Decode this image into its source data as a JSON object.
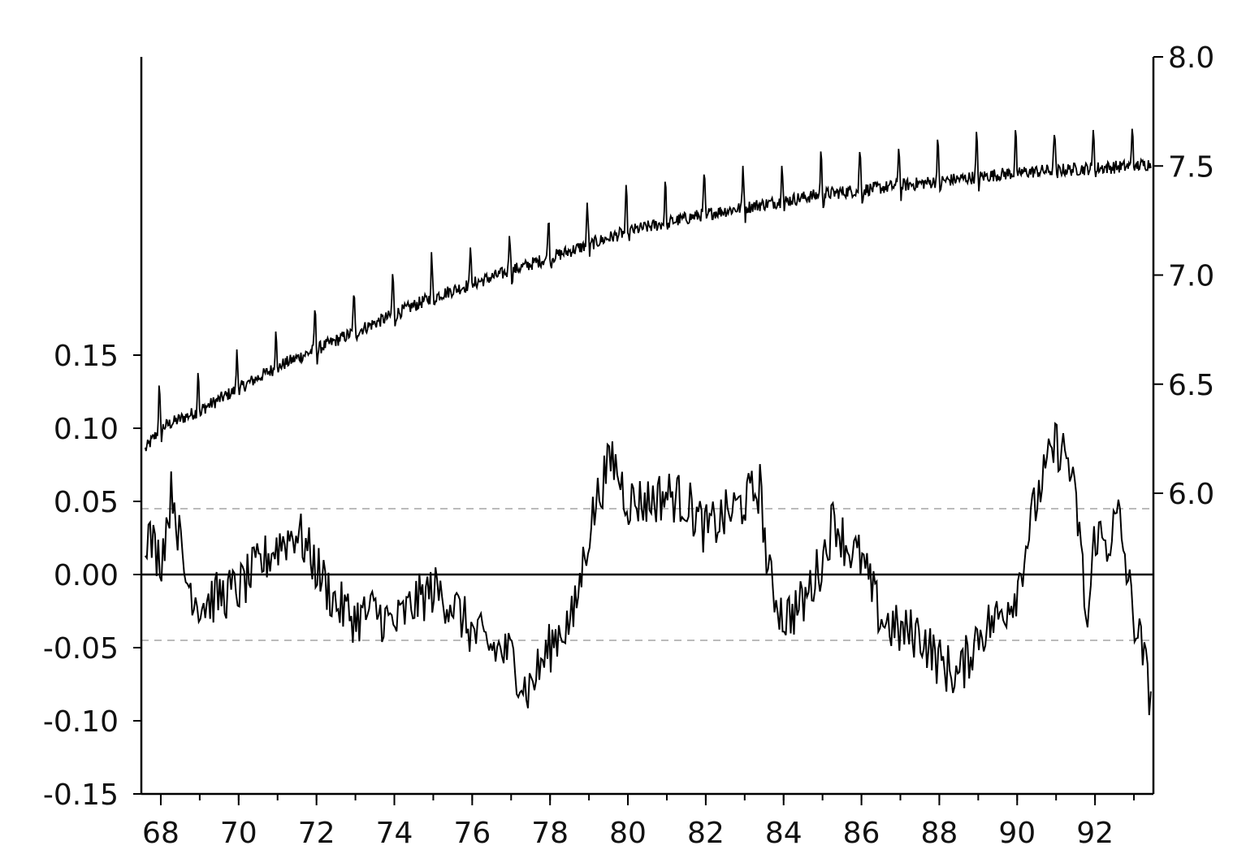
{
  "chart_data": {
    "type": "line",
    "title": "",
    "xlabel": "",
    "ylabel": "",
    "x_range": [
      1967.5,
      1993.5
    ],
    "x_ticks": [
      "68",
      "70",
      "72",
      "74",
      "76",
      "78",
      "80",
      "82",
      "84",
      "86",
      "88",
      "90",
      "92"
    ],
    "x_tick_years": [
      1968,
      1970,
      1972,
      1974,
      1976,
      1978,
      1980,
      1982,
      1984,
      1986,
      1988,
      1990,
      1992
    ],
    "left_axis": {
      "ylim": [
        -0.15,
        0.2
      ],
      "ticks": [
        "-0.15",
        "-0.10",
        "-0.05",
        "0.00",
        "0.05",
        "0.10",
        "0.15"
      ],
      "tick_values": [
        -0.15,
        -0.1,
        -0.05,
        0.0,
        0.05,
        0.1,
        0.15
      ]
    },
    "right_axis": {
      "ylim": [
        5.6,
        8.0
      ],
      "ticks": [
        "6.0",
        "6.5",
        "7.0",
        "7.5",
        "8.0"
      ],
      "tick_values": [
        6.0,
        6.5,
        7.0,
        7.5,
        8.0
      ]
    },
    "reference_lines": [
      {
        "axis": "left",
        "value": 0.0,
        "style": "solid",
        "color": "#000000"
      },
      {
        "axis": "left",
        "value": 0.045,
        "style": "dashed",
        "color": "#bbbbbb"
      },
      {
        "axis": "left",
        "value": -0.045,
        "style": "dashed",
        "color": "#bbbbbb"
      }
    ],
    "series": [
      {
        "axis": "right",
        "color": "#000000",
        "description_points": [
          [
            1967.6,
            6.2
          ],
          [
            1968.0,
            6.3
          ],
          [
            1969.0,
            6.38
          ],
          [
            1970.0,
            6.48
          ],
          [
            1971.0,
            6.58
          ],
          [
            1972.0,
            6.66
          ],
          [
            1973.0,
            6.74
          ],
          [
            1974.0,
            6.82
          ],
          [
            1975.0,
            6.9
          ],
          [
            1976.0,
            6.96
          ],
          [
            1977.0,
            7.02
          ],
          [
            1978.0,
            7.08
          ],
          [
            1979.0,
            7.14
          ],
          [
            1980.0,
            7.2
          ],
          [
            1981.0,
            7.24
          ],
          [
            1982.0,
            7.28
          ],
          [
            1983.0,
            7.31
          ],
          [
            1984.0,
            7.34
          ],
          [
            1985.0,
            7.37
          ],
          [
            1986.0,
            7.39
          ],
          [
            1987.0,
            7.41
          ],
          [
            1988.0,
            7.43
          ],
          [
            1989.0,
            7.45
          ],
          [
            1990.0,
            7.47
          ],
          [
            1991.0,
            7.48
          ],
          [
            1992.0,
            7.49
          ],
          [
            1993.0,
            7.5
          ],
          [
            1993.4,
            7.51
          ]
        ],
        "seasonal_peak_amplitude": 0.22,
        "seasonal_trough_amplitude": 0.06
      },
      {
        "axis": "left",
        "color": "#000000",
        "points": [
          [
            1967.6,
            0.03
          ],
          [
            1968.0,
            0.01
          ],
          [
            1968.3,
            0.06
          ],
          [
            1968.6,
            0.0
          ],
          [
            1969.0,
            -0.02
          ],
          [
            1969.5,
            -0.015
          ],
          [
            1970.0,
            -0.01
          ],
          [
            1970.5,
            0.005
          ],
          [
            1971.0,
            0.02
          ],
          [
            1971.5,
            0.03
          ],
          [
            1972.0,
            0.005
          ],
          [
            1972.5,
            -0.02
          ],
          [
            1973.0,
            -0.03
          ],
          [
            1973.5,
            -0.025
          ],
          [
            1974.0,
            -0.035
          ],
          [
            1974.5,
            -0.02
          ],
          [
            1975.0,
            -0.01
          ],
          [
            1975.5,
            -0.02
          ],
          [
            1976.0,
            -0.04
          ],
          [
            1976.5,
            -0.05
          ],
          [
            1977.0,
            -0.055
          ],
          [
            1977.4,
            -0.08
          ],
          [
            1977.8,
            -0.06
          ],
          [
            1978.2,
            -0.04
          ],
          [
            1978.6,
            -0.03
          ],
          [
            1979.0,
            0.03
          ],
          [
            1979.3,
            0.06
          ],
          [
            1979.6,
            0.08
          ],
          [
            1980.0,
            0.05
          ],
          [
            1980.5,
            0.05
          ],
          [
            1981.0,
            0.055
          ],
          [
            1981.5,
            0.05
          ],
          [
            1982.0,
            0.03
          ],
          [
            1982.5,
            0.04
          ],
          [
            1983.0,
            0.05
          ],
          [
            1983.4,
            0.06
          ],
          [
            1983.6,
            0.0
          ],
          [
            1984.0,
            -0.03
          ],
          [
            1984.5,
            -0.02
          ],
          [
            1985.0,
            0.01
          ],
          [
            1985.3,
            0.04
          ],
          [
            1985.6,
            0.02
          ],
          [
            1986.0,
            0.01
          ],
          [
            1986.5,
            -0.03
          ],
          [
            1987.0,
            -0.04
          ],
          [
            1987.5,
            -0.04
          ],
          [
            1988.0,
            -0.06
          ],
          [
            1988.5,
            -0.07
          ],
          [
            1989.0,
            -0.04
          ],
          [
            1989.5,
            -0.03
          ],
          [
            1990.0,
            -0.01
          ],
          [
            1990.3,
            0.03
          ],
          [
            1990.6,
            0.06
          ],
          [
            1991.0,
            0.09
          ],
          [
            1991.3,
            0.08
          ],
          [
            1991.6,
            0.03
          ],
          [
            1991.8,
            -0.04
          ],
          [
            1992.0,
            0.03
          ],
          [
            1992.3,
            0.02
          ],
          [
            1992.6,
            0.04
          ],
          [
            1993.0,
            -0.03
          ],
          [
            1993.2,
            -0.05
          ],
          [
            1993.4,
            -0.08
          ]
        ],
        "noise_amplitude": 0.018
      }
    ]
  }
}
